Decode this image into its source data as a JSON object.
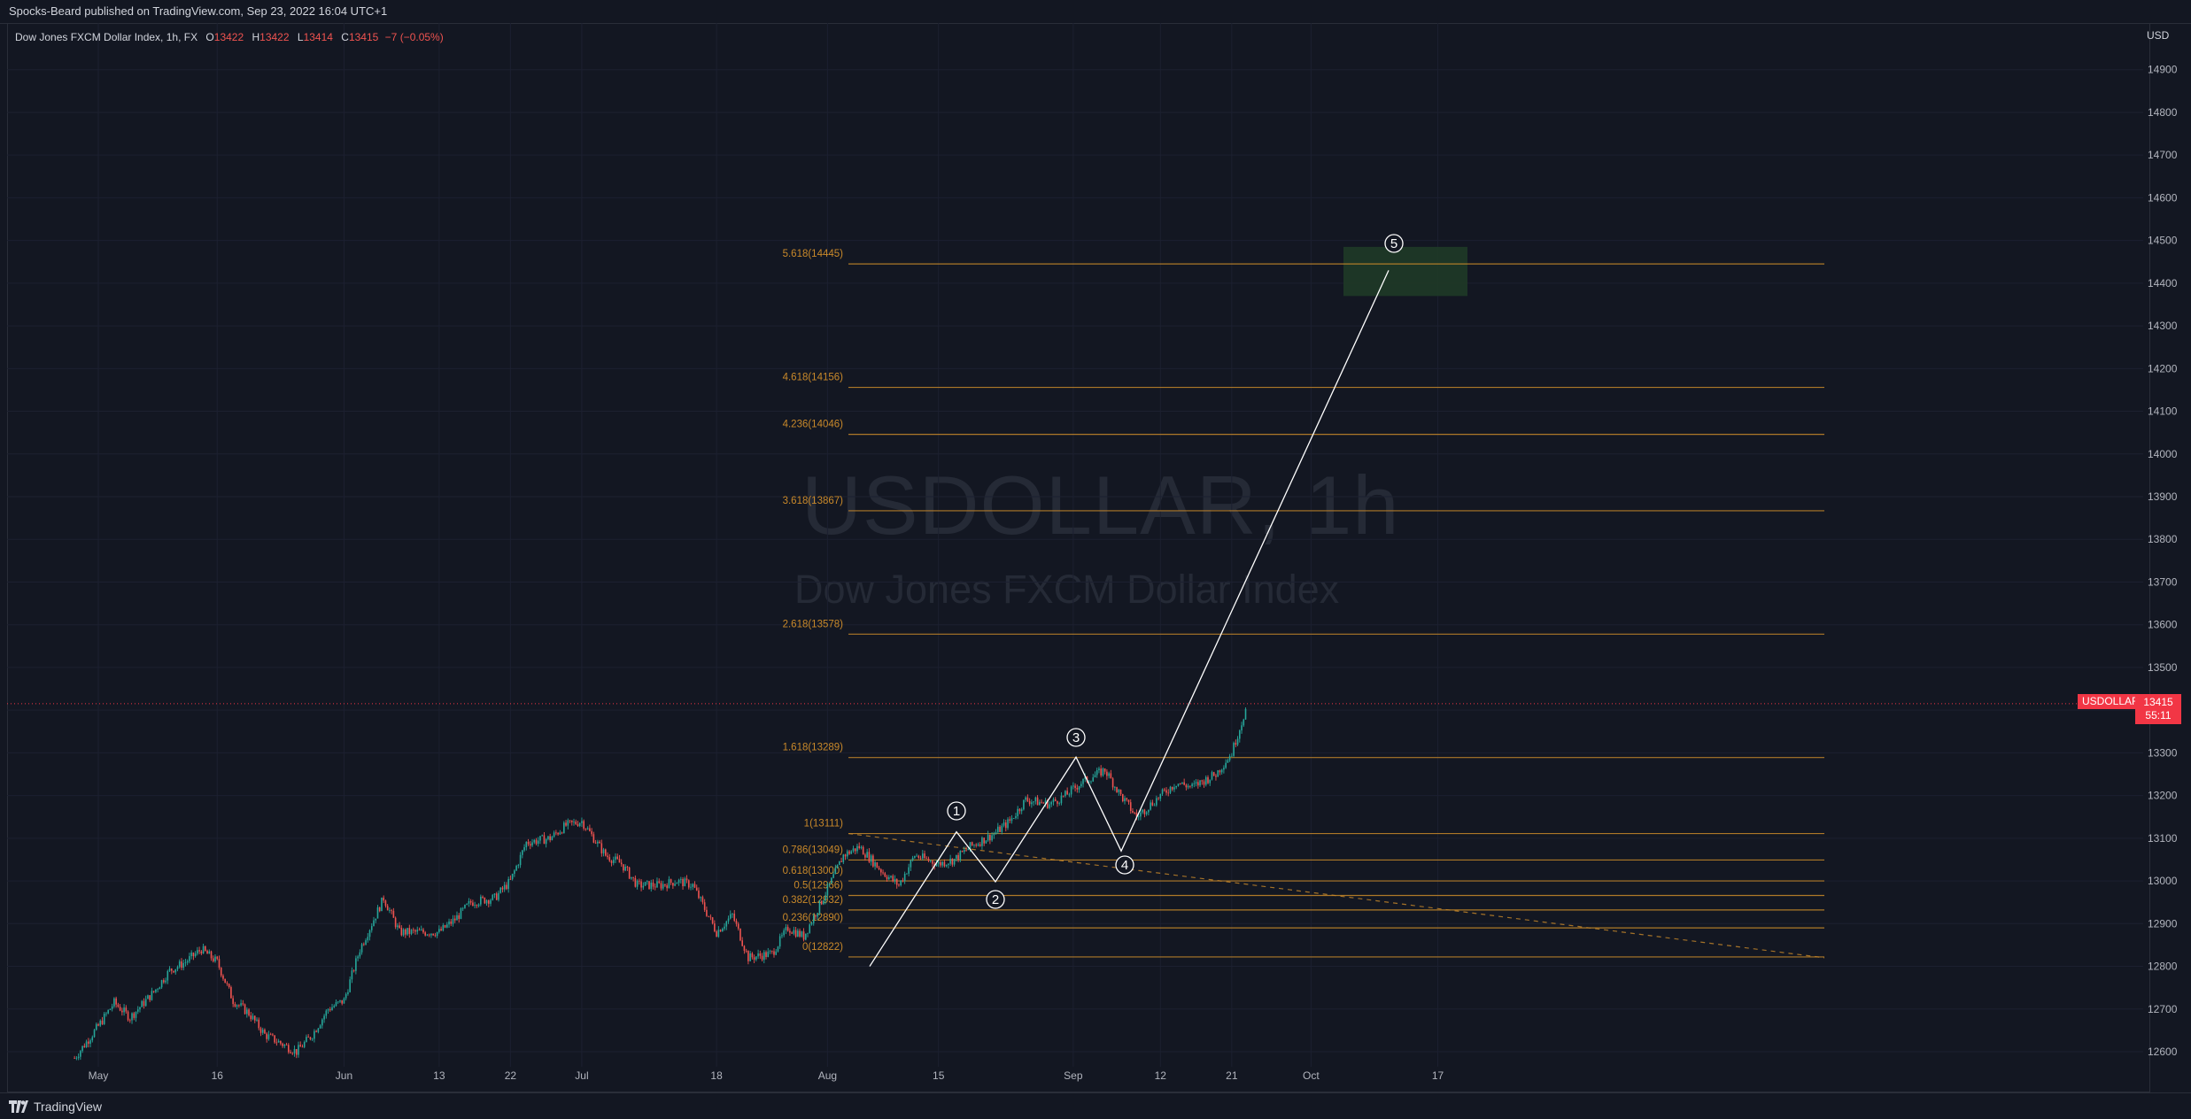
{
  "header": {
    "publisher": "Spocks-Beard published on TradingView.com, Sep 23, 2022 16:04 UTC+1"
  },
  "legend": {
    "symbol": "Dow Jones FXCM Dollar Index, 1h, FX",
    "o_label": "O",
    "o_value": "13422",
    "h_label": "H",
    "h_value": "13422",
    "l_label": "L",
    "l_value": "13414",
    "c_label": "C",
    "c_value": "13415",
    "change": "−7 (−0.05%)"
  },
  "axis": {
    "currency": "USD"
  },
  "watermark": {
    "line1": "USDOLLAR, 1h",
    "line2": "Dow Jones FXCM Dollar Index"
  },
  "price_marker": {
    "symbol": "USDOLLAR",
    "price": "13415",
    "countdown": "55:11"
  },
  "footer": {
    "brand": "TradingView"
  },
  "colors": {
    "background": "#131722",
    "up": "#26a69a",
    "down": "#ef5350",
    "fib": "#c9892a",
    "target_box": "#1f3a27",
    "price_line": "#f23645"
  },
  "chart_data": {
    "type": "line",
    "ylim": [
      12600,
      14900
    ],
    "y_ticks": [
      12600,
      12700,
      12800,
      12900,
      13000,
      13100,
      13200,
      13300,
      13400,
      13500,
      13600,
      13700,
      13800,
      13900,
      14000,
      14100,
      14200,
      14300,
      14400,
      14500,
      14600,
      14700,
      14800,
      14900
    ],
    "x_ticks": [
      "May",
      "16",
      "Jun",
      "13",
      "22",
      "Jul",
      "18",
      "Aug",
      "15",
      "Sep",
      "12",
      "21",
      "Oct",
      "17"
    ],
    "series": [
      {
        "x": [
          "Apr 28",
          "May 1",
          "May 3",
          "May 5",
          "May 8",
          "May 10",
          "May 12",
          "May 14",
          "May 16",
          "May 18",
          "May 20",
          "May 22",
          "May 24",
          "May 26",
          "May 28",
          "May 30",
          "Jun 1",
          "Jun 3",
          "Jun 6",
          "Jun 8",
          "Jun 10",
          "Jun 13",
          "Jun 15",
          "Jun 17",
          "Jun 20",
          "Jun 22",
          "Jun 24",
          "Jun 27",
          "Jun 29",
          "Jul 1",
          "Jul 4",
          "Jul 6",
          "Jul 8",
          "Jul 11",
          "Jul 13",
          "Jul 15",
          "Jul 18",
          "Jul 20",
          "Jul 22",
          "Jul 25",
          "Jul 27",
          "Jul 29",
          "Aug 1",
          "Aug 3",
          "Aug 5",
          "Aug 8",
          "Aug 10",
          "Aug 12",
          "Aug 15",
          "Aug 17",
          "Aug 19",
          "Aug 22",
          "Aug 24",
          "Aug 26",
          "Aug 29",
          "Aug 31",
          "Sep 2",
          "Sep 5",
          "Sep 7",
          "Sep 9",
          "Sep 12",
          "Sep 14",
          "Sep 16",
          "Sep 19",
          "Sep 21",
          "Sep 23"
        ],
        "values": [
          12585,
          12660,
          12715,
          12680,
          12740,
          12790,
          12810,
          12840,
          12810,
          12720,
          12690,
          12640,
          12620,
          12600,
          12640,
          12700,
          12720,
          12840,
          12960,
          12880,
          12880,
          12880,
          12910,
          12950,
          12960,
          13000,
          13090,
          13100,
          13130,
          13140,
          13060,
          13040,
          12990,
          12990,
          13000,
          12990,
          12880,
          12920,
          12820,
          12830,
          12890,
          12870,
          12980,
          13060,
          13080,
          13020,
          12990,
          13060,
          13040,
          13050,
          13080,
          13110,
          13140,
          13190,
          13180,
          13200,
          13230,
          13260,
          13200,
          13150,
          13200,
          13230,
          13220,
          13250,
          13300,
          13415
        ]
      }
    ],
    "fib_levels": [
      {
        "label": "5.618(14445)",
        "value": 14445
      },
      {
        "label": "4.618(14156)",
        "value": 14156
      },
      {
        "label": "4.236(14046)",
        "value": 14046
      },
      {
        "label": "3.618(13867)",
        "value": 13867
      },
      {
        "label": "2.618(13578)",
        "value": 13578
      },
      {
        "label": "1.618(13289)",
        "value": 13289
      },
      {
        "label": "1(13111)",
        "value": 13111
      },
      {
        "label": "0.786(13049)",
        "value": 13049
      },
      {
        "label": "0.618(13000)",
        "value": 13000
      },
      {
        "label": "0.5(12966)",
        "value": 12966
      },
      {
        "label": "0.382(12932)",
        "value": 12932
      },
      {
        "label": "0.236(12890)",
        "value": 12890
      },
      {
        "label": "0(12822)",
        "value": 12822
      }
    ],
    "waves": [
      {
        "label": "1",
        "value": 13115
      },
      {
        "label": "2",
        "value": 12998
      },
      {
        "label": "3",
        "value": 13290
      },
      {
        "label": "4",
        "value": 13070
      },
      {
        "label": "5",
        "value": 14430
      }
    ],
    "current_price": 13415
  }
}
